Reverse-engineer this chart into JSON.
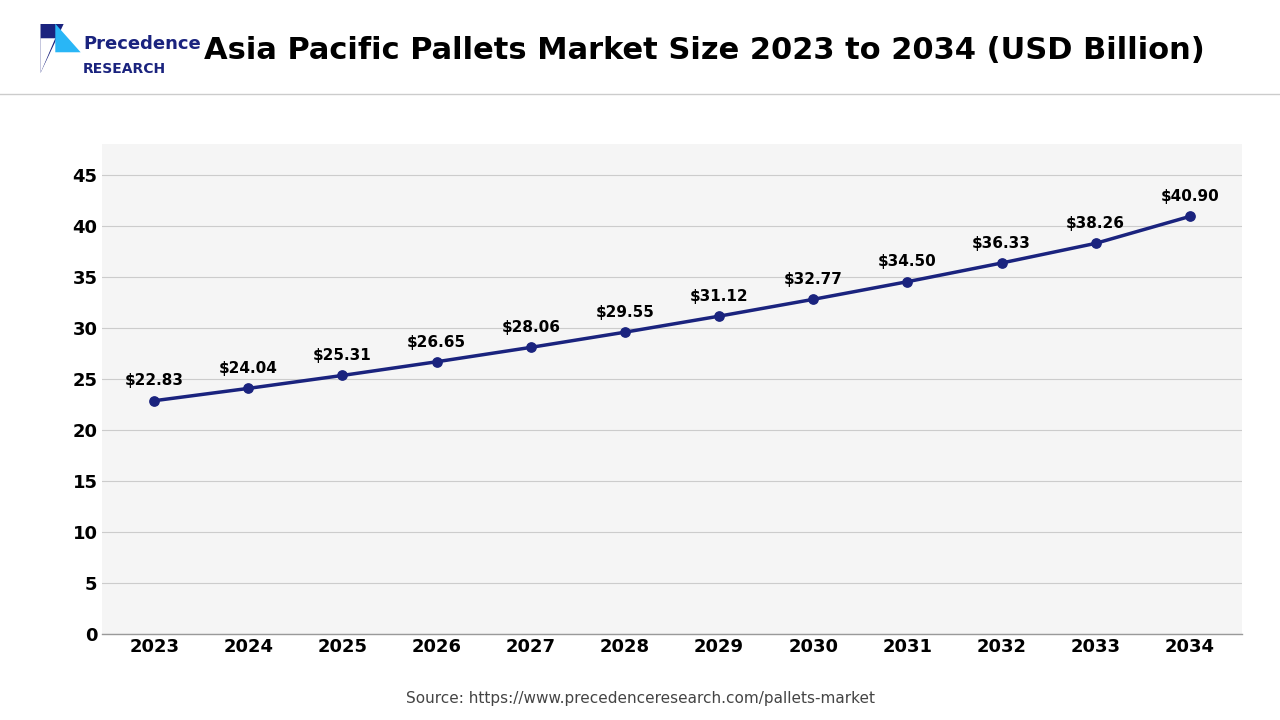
{
  "title": "Asia Pacific Pallets Market Size 2023 to 2034 (USD Billion)",
  "years": [
    2023,
    2024,
    2025,
    2026,
    2027,
    2028,
    2029,
    2030,
    2031,
    2032,
    2033,
    2034
  ],
  "values": [
    22.83,
    24.04,
    25.31,
    26.65,
    28.06,
    29.55,
    31.12,
    32.77,
    34.5,
    36.33,
    38.26,
    40.9
  ],
  "labels": [
    "$22.83",
    "$24.04",
    "$25.31",
    "$26.65",
    "$28.06",
    "$29.55",
    "$31.12",
    "$32.77",
    "$34.50",
    "$36.33",
    "$38.26",
    "$40.90"
  ],
  "line_color": "#1a237e",
  "marker_color": "#1a237e",
  "bg_color": "#ffffff",
  "plot_bg_color": "#f5f5f5",
  "grid_color": "#cccccc",
  "ylim": [
    0,
    48
  ],
  "yticks": [
    0,
    5,
    10,
    15,
    20,
    25,
    30,
    35,
    40,
    45
  ],
  "source_text": "Source: https://www.precedenceresearch.com/pallets-market",
  "title_fontsize": 22,
  "tick_fontsize": 13,
  "label_fontsize": 11,
  "source_fontsize": 11,
  "logo_color_dark": "#1a237e",
  "logo_color_light": "#29b6f6"
}
